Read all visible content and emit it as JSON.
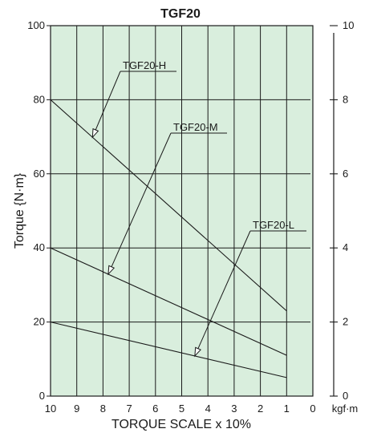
{
  "chart_data": {
    "type": "line",
    "title": "TGF20",
    "xlabel": "TORQUE SCALE x 10%",
    "ylabel": "Torque {N·m}",
    "y2label": "kgf·m",
    "x_ticks": [
      "10",
      "9",
      "8",
      "7",
      "6",
      "5",
      "4",
      "3",
      "2",
      "1",
      "0"
    ],
    "y_ticks": [
      "0",
      "20",
      "40",
      "60",
      "80",
      "100"
    ],
    "y2_ticks": [
      "0",
      "2",
      "4",
      "6",
      "8",
      "10"
    ],
    "xlim": [
      10,
      0
    ],
    "ylim": [
      0,
      100
    ],
    "y2lim": [
      0,
      10
    ],
    "grid": true,
    "background": "#d9eedd",
    "line_color": "#1a1a1a",
    "series": [
      {
        "name": "TGF20-H",
        "x": [
          10,
          1
        ],
        "y": [
          80,
          23
        ]
      },
      {
        "name": "TGF20-M",
        "x": [
          10,
          1
        ],
        "y": [
          40,
          11
        ]
      },
      {
        "name": "TGF20-L",
        "x": [
          10,
          1
        ],
        "y": [
          20,
          5
        ]
      }
    ]
  }
}
